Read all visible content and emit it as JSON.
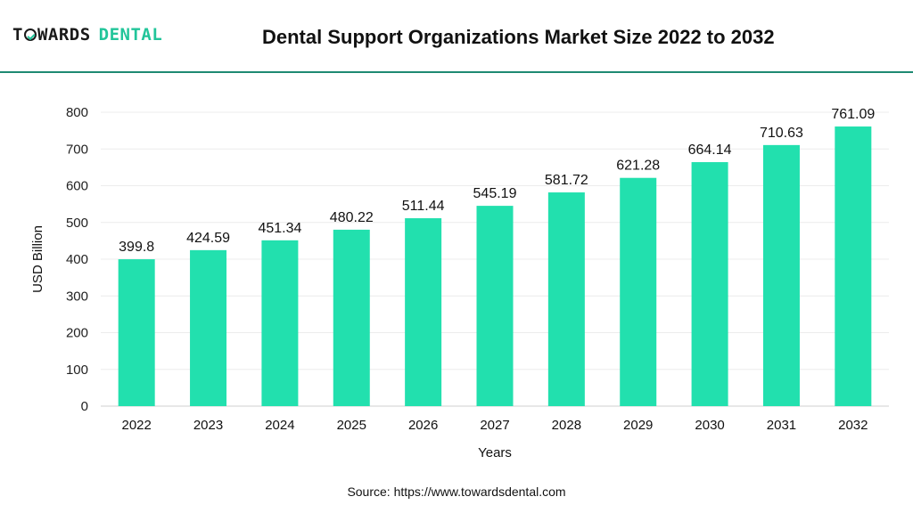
{
  "header": {
    "logo_part1": "TOWARDS",
    "logo_part2": "DENTAL",
    "title": "Dental Support Organizations Market Size 2022 to 2032"
  },
  "footer": {
    "source": "Source: https://www.towardsdental.com"
  },
  "colors": {
    "bar": "#22e0ae",
    "rule": "#1e8a72",
    "brand_accent": "#22c59a"
  },
  "chart_data": {
    "type": "bar",
    "title": "Dental Support Organizations Market Size 2022 to 2032",
    "xlabel": "Years",
    "ylabel": "USD Billion",
    "categories": [
      "2022",
      "2023",
      "2024",
      "2025",
      "2026",
      "2027",
      "2028",
      "2029",
      "2030",
      "2031",
      "2032"
    ],
    "values": [
      399.8,
      424.59,
      451.34,
      480.22,
      511.44,
      545.19,
      581.72,
      621.28,
      664.14,
      710.63,
      761.09
    ],
    "data_labels": [
      "399.8",
      "424.59",
      "451.34",
      "480.22",
      "511.44",
      "545.19",
      "581.72",
      "621.28",
      "664.14",
      "710.63",
      "761.09"
    ],
    "ylim": [
      0,
      800
    ],
    "yticks": [
      0,
      100,
      200,
      300,
      400,
      500,
      600,
      700,
      800
    ],
    "grid": true,
    "legend": "none"
  }
}
